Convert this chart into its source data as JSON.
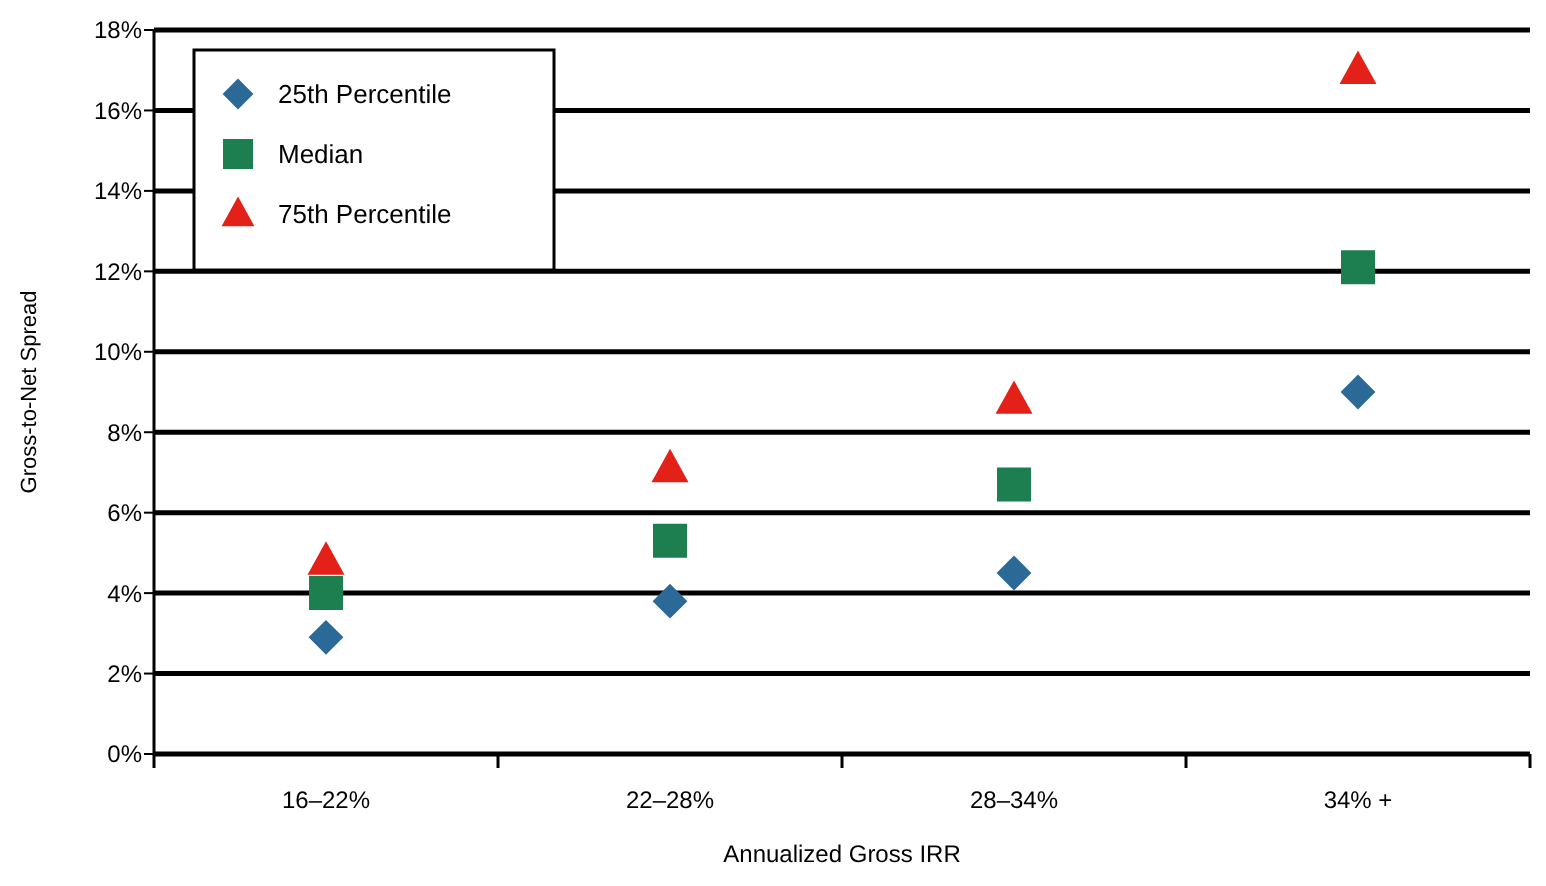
{
  "chart_data": {
    "type": "scatter",
    "xlabel": "Annualized Gross IRR",
    "ylabel": "Gross-to-Net Spread",
    "categories": [
      "16–22%",
      "22–28%",
      "28–34%",
      "34% +"
    ],
    "series": [
      {
        "name": "25th Percentile",
        "color": "#2b6a97",
        "marker": "diamond",
        "values": [
          2.9,
          3.8,
          4.5,
          9.0
        ]
      },
      {
        "name": "Median",
        "color": "#1d7f4f",
        "marker": "square",
        "values": [
          4.0,
          5.3,
          6.7,
          12.1
        ]
      },
      {
        "name": "75th Percentile",
        "color": "#e32119",
        "marker": "triangle",
        "values": [
          4.8,
          7.1,
          8.8,
          17.0
        ]
      }
    ],
    "ylim": [
      0,
      18
    ],
    "yticks": [
      {
        "value": 0,
        "label": "0%"
      },
      {
        "value": 2,
        "label": "2%"
      },
      {
        "value": 4,
        "label": "4%"
      },
      {
        "value": 6,
        "label": "6%"
      },
      {
        "value": 8,
        "label": "8%"
      },
      {
        "value": 10,
        "label": "10%"
      },
      {
        "value": 12,
        "label": "12%"
      },
      {
        "value": 14,
        "label": "14%"
      },
      {
        "value": 16,
        "label": "16%"
      },
      {
        "value": 18,
        "label": "18%"
      }
    ],
    "grid": "y",
    "legend": "top left"
  }
}
